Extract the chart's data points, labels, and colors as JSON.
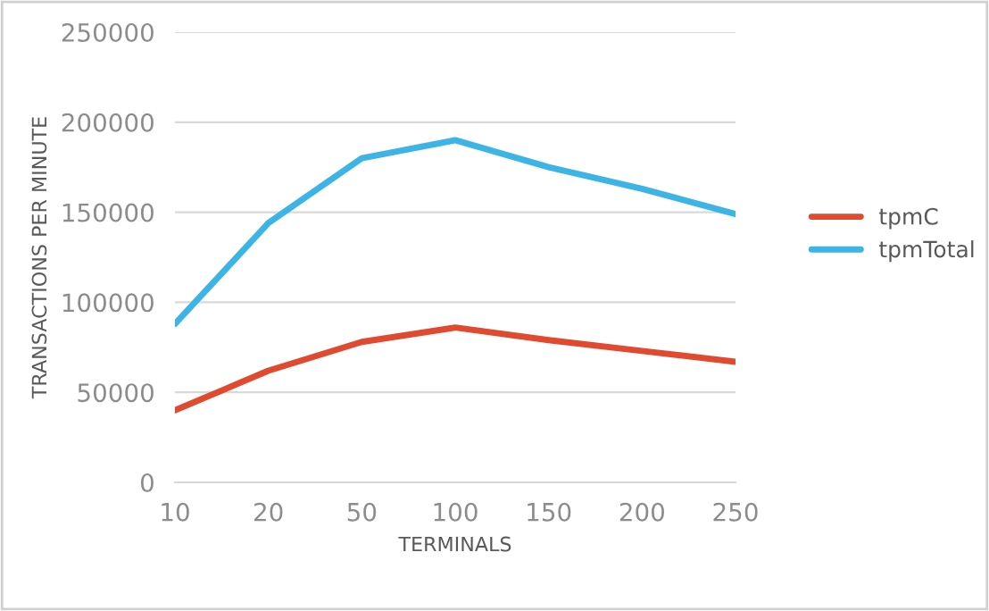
{
  "chart_data": {
    "type": "line",
    "xlabel": "TERMINALS",
    "ylabel": "TRANSACTIONS PER MINUTE",
    "categories": [
      "10",
      "20",
      "50",
      "100",
      "150",
      "200",
      "250"
    ],
    "series": [
      {
        "name": "tpmC",
        "color": "#e04a2f",
        "values": [
          40000,
          62000,
          78000,
          86000,
          79000,
          73000,
          67000
        ]
      },
      {
        "name": "tpmTotal",
        "color": "#3cb4e5",
        "values": [
          88000,
          144000,
          180000,
          190000,
          175000,
          163000,
          149000
        ]
      }
    ],
    "ylim": [
      0,
      250000
    ],
    "yticks": [
      0,
      50000,
      100000,
      150000,
      200000,
      250000
    ],
    "grid": "y",
    "legend": "right",
    "marker": "none",
    "line_style": "solid"
  }
}
